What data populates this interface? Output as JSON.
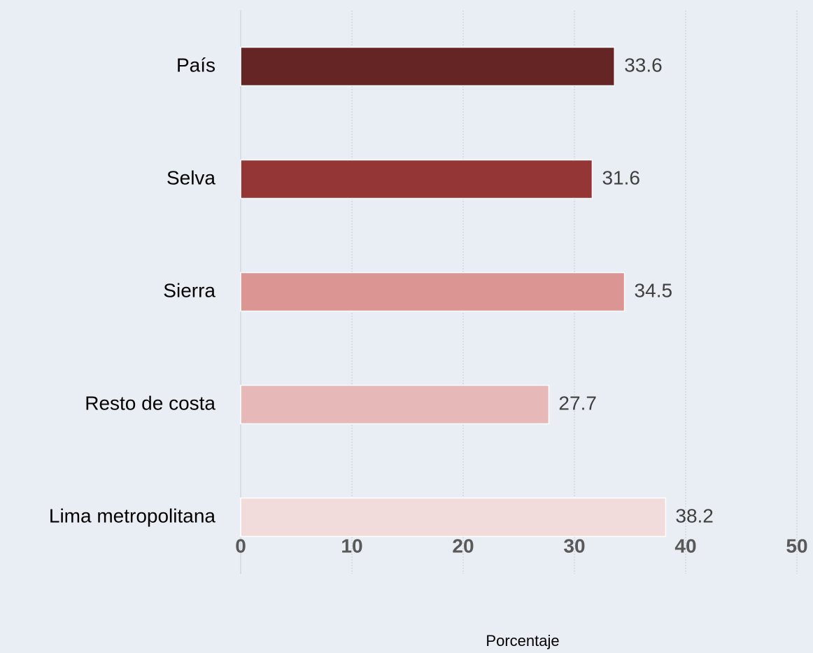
{
  "chart_data": {
    "type": "barh",
    "categories": [
      "País",
      "Selva",
      "Sierra",
      "Resto de costa",
      "Lima metropolitana"
    ],
    "values": [
      33.6,
      31.6,
      34.5,
      27.7,
      38.2
    ],
    "colors": [
      "#662525",
      "#953636",
      "#db9694",
      "#e6b8b7",
      "#f2dcdb"
    ],
    "xlim": [
      0,
      50
    ],
    "xticks": [
      0,
      10,
      20,
      30,
      40,
      50
    ],
    "xlabel": "Porcentaje",
    "grid": true
  }
}
